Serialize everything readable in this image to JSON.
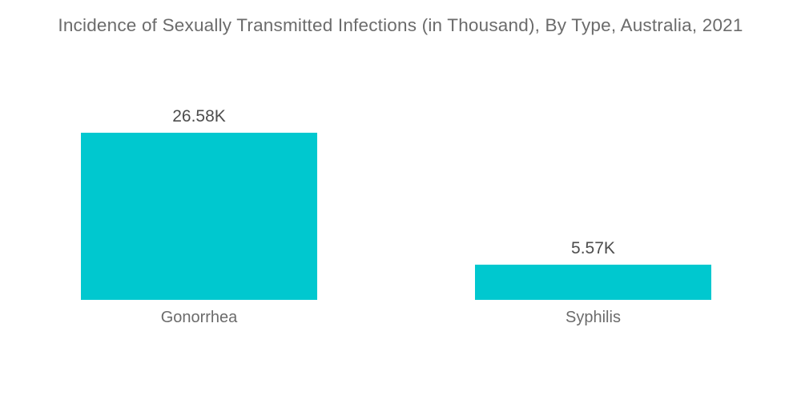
{
  "title": "Incidence of Sexually Transmitted Infections (in Thousand), By Type, Australia, 2021",
  "chart_data": {
    "type": "bar",
    "title": "Incidence of Sexually Transmitted Infections (in Thousand), By Type, Australia, 2021",
    "orientation": "vertical",
    "categories": [
      "Gonorrhea",
      "Syphilis"
    ],
    "values": [
      26.58,
      5.57
    ],
    "value_labels": [
      "26.58K",
      "5.57K"
    ],
    "unit": "Thousand",
    "xlabel": "",
    "ylabel": "",
    "ylim": [
      0,
      26.58
    ],
    "grid": false,
    "legend": false,
    "axes_visible": false,
    "colors": {
      "bar": "#00c8cf",
      "title_text": "#6b6b6b",
      "value_text": "#4d4d4d",
      "category_text": "#6b6b6b",
      "background": "#ffffff"
    }
  }
}
